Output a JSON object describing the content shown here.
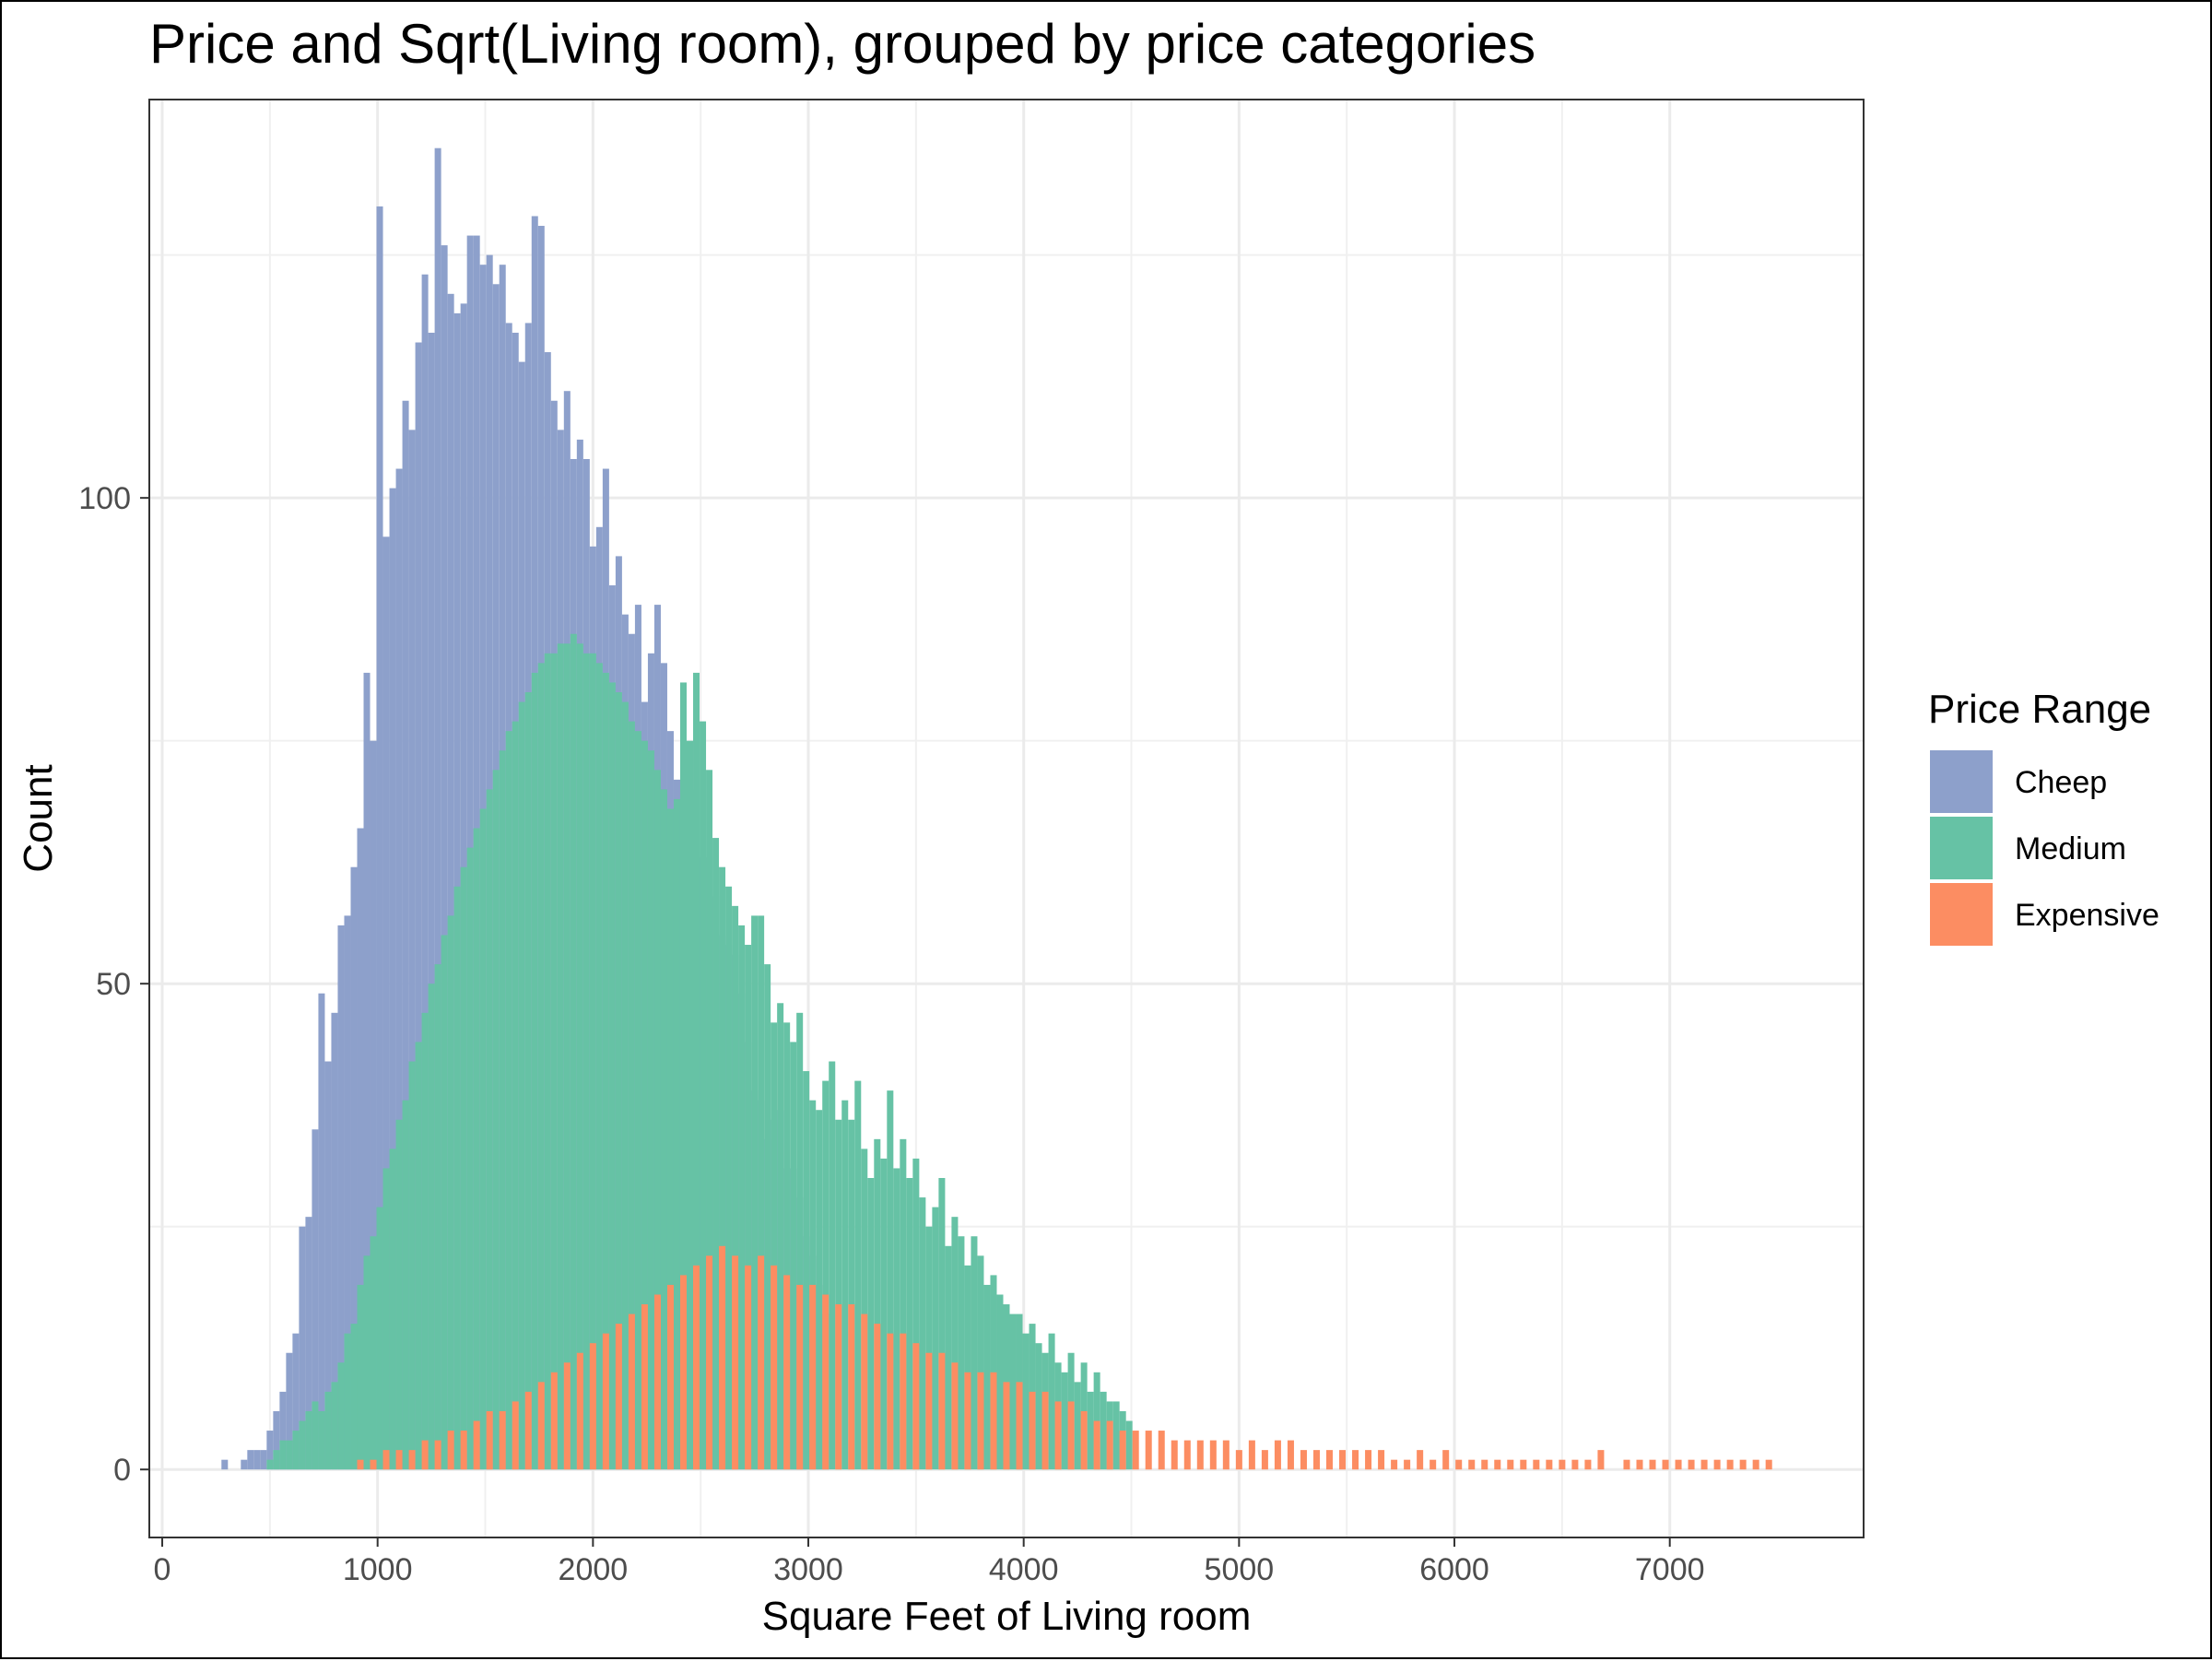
{
  "chart_data": {
    "type": "bar",
    "stacked": false,
    "title": "Price and Sqrt(Living room), grouped by price categories",
    "xlabel": "Square Feet of Living room",
    "ylabel": "Count",
    "xlim": [
      -60,
      7900
    ],
    "ylim": [
      -7,
      141
    ],
    "xticks": [
      0,
      1000,
      2000,
      3000,
      4000,
      5000,
      6000,
      7000
    ],
    "yticks": [
      0,
      50,
      100
    ],
    "grid": true,
    "legend": {
      "title": "Price Range",
      "position": "right"
    },
    "bin_width": 30,
    "series": [
      {
        "name": "Cheep",
        "color": "#8DA0CB",
        "x": [
          290,
          380,
          410,
          440,
          470,
          500,
          530,
          560,
          590,
          620,
          650,
          680,
          710,
          740,
          770,
          800,
          830,
          860,
          890,
          920,
          950,
          980,
          1010,
          1040,
          1070,
          1100,
          1130,
          1160,
          1190,
          1220,
          1250,
          1280,
          1310,
          1340,
          1370,
          1400,
          1430,
          1460,
          1490,
          1520,
          1550,
          1580,
          1610,
          1640,
          1670,
          1700,
          1730,
          1760,
          1790,
          1820,
          1850,
          1880,
          1910,
          1940,
          1970,
          2000,
          2030,
          2060,
          2090,
          2120,
          2150,
          2180,
          2210,
          2240,
          2270,
          2300,
          2330,
          2360,
          2390,
          2420,
          2450,
          2480,
          2510,
          2540,
          2570,
          2600,
          2630,
          2660,
          2690,
          2720,
          2750,
          2780,
          2810,
          2840,
          2870,
          2900,
          2930,
          2960,
          2990,
          3020,
          3050,
          3080
        ],
        "values": [
          1,
          1,
          2,
          2,
          2,
          4,
          6,
          8,
          12,
          14,
          25,
          26,
          35,
          49,
          42,
          47,
          56,
          57,
          62,
          66,
          82,
          75,
          130,
          96,
          101,
          103,
          110,
          107,
          116,
          123,
          117,
          136,
          126,
          121,
          119,
          120,
          127,
          127,
          124,
          125,
          122,
          124,
          118,
          117,
          114,
          118,
          129,
          128,
          115,
          110,
          107,
          111,
          104,
          106,
          104,
          95,
          97,
          103,
          91,
          94,
          88,
          86,
          89,
          79,
          84,
          89,
          83,
          76,
          71,
          73,
          68,
          70,
          63,
          63,
          59,
          55,
          54,
          53,
          49,
          44,
          39,
          38,
          34,
          36,
          37,
          31,
          31,
          28,
          24,
          22,
          19,
          16
        ]
      },
      {
        "name": "Medium",
        "color": "#66C2A5",
        "x": [
          500,
          530,
          560,
          590,
          620,
          650,
          680,
          710,
          740,
          770,
          800,
          830,
          860,
          890,
          920,
          950,
          980,
          1010,
          1040,
          1070,
          1100,
          1130,
          1160,
          1190,
          1220,
          1250,
          1280,
          1310,
          1340,
          1370,
          1400,
          1430,
          1460,
          1490,
          1520,
          1550,
          1580,
          1610,
          1640,
          1670,
          1700,
          1730,
          1760,
          1790,
          1820,
          1850,
          1880,
          1910,
          1940,
          1970,
          2000,
          2030,
          2060,
          2090,
          2120,
          2150,
          2180,
          2210,
          2240,
          2270,
          2300,
          2330,
          2360,
          2390,
          2420,
          2450,
          2480,
          2510,
          2540,
          2570,
          2600,
          2630,
          2660,
          2690,
          2720,
          2750,
          2780,
          2810,
          2840,
          2870,
          2900,
          2930,
          2960,
          2990,
          3020,
          3050,
          3080,
          3110,
          3140,
          3170,
          3200,
          3230,
          3260,
          3290,
          3320,
          3350,
          3380,
          3410,
          3440,
          3470,
          3500,
          3530,
          3560,
          3590,
          3620,
          3650,
          3680,
          3710,
          3740,
          3770,
          3800,
          3830,
          3860,
          3890,
          3920,
          3950,
          3980,
          4010,
          4040,
          4070,
          4100,
          4130,
          4160,
          4190,
          4220,
          4250,
          4280,
          4310,
          4340,
          4370,
          4400,
          4430,
          4460,
          4490
        ],
        "values": [
          1,
          2,
          3,
          3,
          4,
          5,
          6,
          7,
          6,
          8,
          9,
          11,
          14,
          15,
          19,
          22,
          24,
          27,
          31,
          33,
          36,
          38,
          42,
          44,
          47,
          50,
          52,
          55,
          57,
          60,
          62,
          64,
          66,
          68,
          70,
          72,
          74,
          76,
          77,
          79,
          80,
          82,
          83,
          84,
          84,
          85,
          85,
          86,
          85,
          84,
          84,
          83,
          82,
          81,
          80,
          79,
          77,
          76,
          75,
          74,
          72,
          70,
          68,
          69,
          81,
          75,
          82,
          77,
          72,
          65,
          62,
          60,
          58,
          56,
          54,
          57,
          57,
          52,
          46,
          48,
          46,
          44,
          47,
          41,
          38,
          37,
          40,
          42,
          36,
          38,
          36,
          40,
          33,
          30,
          34,
          32,
          39,
          31,
          34,
          30,
          32,
          28,
          25,
          27,
          30,
          23,
          26,
          24,
          21,
          24,
          22,
          19,
          20,
          18,
          17,
          16,
          16,
          14,
          15,
          13,
          12,
          14,
          11,
          10,
          12,
          9,
          11,
          8,
          10,
          8,
          7,
          7,
          6,
          5
        ]
      },
      {
        "name": "Expensive",
        "color": "#FC8D62",
        "x": [
          920,
          980,
          1040,
          1100,
          1160,
          1220,
          1280,
          1340,
          1400,
          1460,
          1520,
          1580,
          1640,
          1700,
          1760,
          1820,
          1880,
          1940,
          2000,
          2060,
          2120,
          2180,
          2240,
          2300,
          2360,
          2420,
          2480,
          2540,
          2600,
          2660,
          2720,
          2780,
          2840,
          2900,
          2960,
          3020,
          3080,
          3140,
          3200,
          3260,
          3320,
          3380,
          3440,
          3500,
          3560,
          3620,
          3680,
          3740,
          3800,
          3860,
          3920,
          3980,
          4040,
          4100,
          4160,
          4220,
          4280,
          4340,
          4400,
          4460,
          4520,
          4580,
          4640,
          4700,
          4760,
          4820,
          4880,
          4940,
          5000,
          5060,
          5120,
          5180,
          5240,
          5300,
          5360,
          5420,
          5480,
          5540,
          5600,
          5660,
          5720,
          5780,
          5840,
          5900,
          5960,
          6020,
          6080,
          6140,
          6200,
          6260,
          6320,
          6380,
          6440,
          6500,
          6560,
          6620,
          6680,
          6740,
          6800,
          6860,
          6920,
          6980,
          7040,
          7100,
          7160,
          7220,
          7280,
          7340,
          7400,
          7460
        ],
        "values": [
          1,
          1,
          2,
          2,
          2,
          3,
          3,
          4,
          4,
          5,
          6,
          6,
          7,
          8,
          9,
          10,
          11,
          12,
          13,
          14,
          15,
          16,
          17,
          18,
          19,
          20,
          21,
          22,
          23,
          22,
          21,
          22,
          21,
          20,
          19,
          19,
          18,
          17,
          17,
          16,
          15,
          14,
          14,
          13,
          12,
          12,
          11,
          10,
          10,
          10,
          9,
          9,
          8,
          8,
          7,
          7,
          6,
          5,
          5,
          4,
          4,
          4,
          4,
          3,
          3,
          3,
          3,
          3,
          2,
          3,
          2,
          3,
          3,
          2,
          2,
          2,
          2,
          2,
          2,
          2,
          1,
          1,
          2,
          1,
          2,
          1,
          1,
          1,
          1,
          1,
          1,
          1,
          1,
          1,
          1,
          1,
          2,
          0,
          1,
          1,
          1,
          1,
          1,
          1,
          1,
          1,
          1,
          1,
          1,
          1
        ]
      }
    ]
  }
}
